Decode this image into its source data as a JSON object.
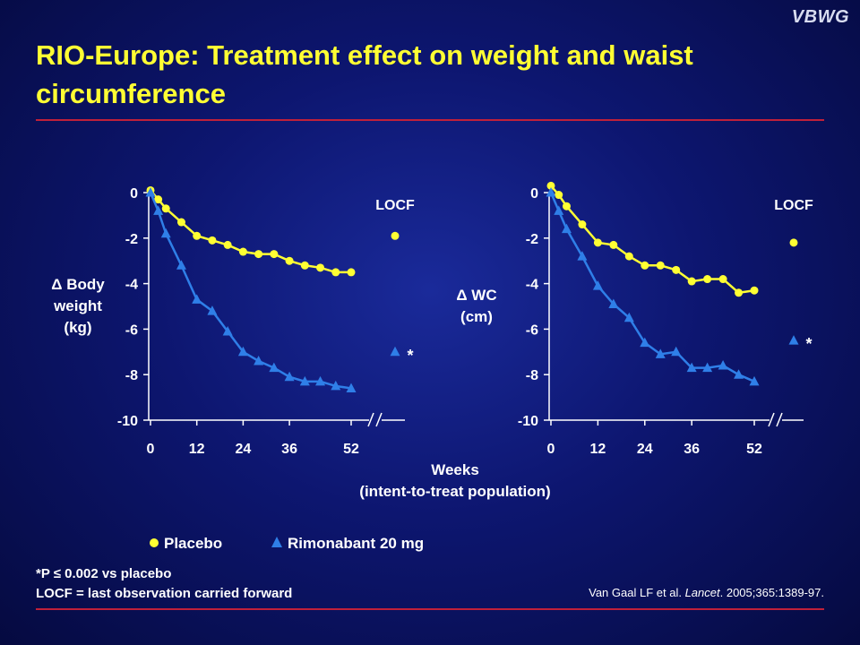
{
  "logo": "VBWG",
  "title": "RIO-Europe: Treatment effect on weight and waist circumference",
  "xlabel": "Weeks",
  "xlabel_sub": "(intent-to-treat population)",
  "legend": {
    "placebo": "Placebo",
    "rimonabant": "Rimonabant 20 mg"
  },
  "footnote1": "*P ≤ 0.002 vs placebo",
  "footnote2": "LOCF = last observation carried forward",
  "citation": {
    "authors": "Van Gaal LF et al. ",
    "journal": "Lancet",
    "rest": ". 2005;365:1389-97."
  },
  "colors": {
    "placebo": "#ffff33",
    "rimonabant": "#2f7fe8",
    "accent_rule": "#c0203a",
    "title": "#ffff33"
  },
  "chart_data": [
    {
      "type": "line",
      "ylabel": [
        "Δ Body",
        "weight",
        "(kg)"
      ],
      "ylim": [
        -10,
        0
      ],
      "yticks": [
        "0",
        "-2",
        "-4",
        "-6",
        "-8",
        "-10"
      ],
      "xticks": [
        "0",
        "12",
        "24",
        "36",
        "52"
      ],
      "xlim": [
        0,
        52
      ],
      "locf_label": "LOCF",
      "series": [
        {
          "name": "Placebo",
          "marker": "circle",
          "x": [
            0,
            2,
            4,
            8,
            12,
            16,
            20,
            24,
            28,
            32,
            36,
            40,
            44,
            48,
            52
          ],
          "y": [
            0.1,
            -0.3,
            -0.7,
            -1.3,
            -1.9,
            -2.1,
            -2.3,
            -2.6,
            -2.7,
            -2.7,
            -3.0,
            -3.2,
            -3.3,
            -3.5,
            -3.5
          ],
          "locf": -1.9
        },
        {
          "name": "Rimonabant 20 mg",
          "marker": "triangle",
          "x": [
            0,
            2,
            4,
            8,
            12,
            16,
            20,
            24,
            28,
            32,
            36,
            40,
            44,
            48,
            52
          ],
          "y": [
            0,
            -0.8,
            -1.8,
            -3.2,
            -4.7,
            -5.2,
            -6.1,
            -7.0,
            -7.4,
            -7.7,
            -8.1,
            -8.3,
            -8.3,
            -8.5,
            -8.6
          ],
          "locf": -7.0,
          "locf_note": "*"
        }
      ]
    },
    {
      "type": "line",
      "ylabel": [
        "Δ WC",
        "(cm)"
      ],
      "ylim": [
        -10,
        0
      ],
      "yticks": [
        "0",
        "-2",
        "-4",
        "-6",
        "-8",
        "-10"
      ],
      "xticks": [
        "0",
        "12",
        "24",
        "36",
        "52"
      ],
      "xlim": [
        0,
        52
      ],
      "locf_label": "LOCF",
      "series": [
        {
          "name": "Placebo",
          "marker": "circle",
          "x": [
            0,
            2,
            4,
            8,
            12,
            16,
            20,
            24,
            28,
            32,
            36,
            40,
            44,
            48,
            52
          ],
          "y": [
            0.3,
            -0.1,
            -0.6,
            -1.4,
            -2.2,
            -2.3,
            -2.8,
            -3.2,
            -3.2,
            -3.4,
            -3.9,
            -3.8,
            -3.8,
            -4.4,
            -4.3
          ],
          "locf": -2.2
        },
        {
          "name": "Rimonabant 20 mg",
          "marker": "triangle",
          "x": [
            0,
            2,
            4,
            8,
            12,
            16,
            20,
            24,
            28,
            32,
            36,
            40,
            44,
            48,
            52
          ],
          "y": [
            0,
            -0.8,
            -1.6,
            -2.8,
            -4.1,
            -4.9,
            -5.5,
            -6.6,
            -7.1,
            -7.0,
            -7.7,
            -7.7,
            -7.6,
            -8.0,
            -8.3
          ],
          "locf": -6.5,
          "locf_note": "*"
        }
      ]
    }
  ]
}
